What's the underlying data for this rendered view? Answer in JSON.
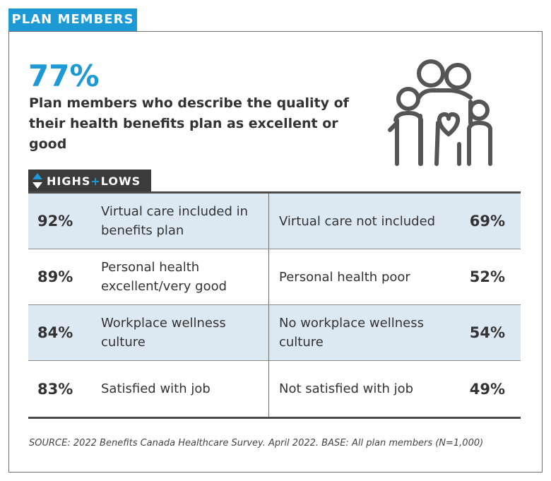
{
  "header": {
    "tab_label": "PLAN MEMBERS"
  },
  "stat": {
    "value": "77%",
    "description": "Plan members who describe the quality of their health benefits plan as excellent or good"
  },
  "icons": {
    "illustration": "family-heart-icon",
    "sort": "up-down-arrows-icon"
  },
  "highs_lows": {
    "label_highs": "HIGHS",
    "label_plus": "+",
    "label_lows": "LOWS",
    "rows": [
      {
        "high_pct": "92%",
        "high_label": "Virtual care included in benefits plan",
        "low_label": "Virtual care not included",
        "low_pct": "69%"
      },
      {
        "high_pct": "89%",
        "high_label": "Personal health excellent/very good",
        "low_label": "Personal health poor",
        "low_pct": "52%"
      },
      {
        "high_pct": "84%",
        "high_label": "Workplace wellness culture",
        "low_label": "No workplace wellness culture",
        "low_pct": "54%"
      },
      {
        "high_pct": "83%",
        "high_label": "Satisfied with job",
        "low_label": "Not satisfied with job",
        "low_pct": "49%"
      }
    ]
  },
  "colors": {
    "accent": "#1d9ad6",
    "dark": "#3b3b3b",
    "row_shade": "#dce8f2"
  },
  "footer": {
    "source": "SOURCE: 2022 Benefits Canada Healthcare Survey. April 2022. BASE: All plan members (N=1,000)"
  }
}
